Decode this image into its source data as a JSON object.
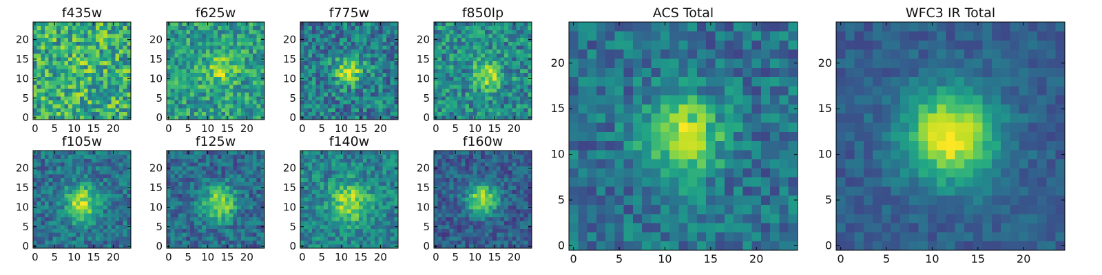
{
  "chart_data": [
    {
      "type": "heatmap",
      "title": "f435w",
      "pixels": "25x25",
      "xticks": [
        0,
        5,
        10,
        15,
        20
      ],
      "yticks": [
        0,
        5,
        10,
        15,
        20
      ],
      "xlim": [
        0,
        24
      ],
      "ylim": [
        0,
        24
      ],
      "colormap": "viridis",
      "peak": [
        12,
        12
      ],
      "peak_strength": 0.05,
      "peak_width": 3.5,
      "noise": 0.55,
      "base": 0.62
    },
    {
      "type": "heatmap",
      "title": "f625w",
      "pixels": "25x25",
      "xticks": [
        0,
        5,
        10,
        15,
        20
      ],
      "yticks": [
        0,
        5,
        10,
        15,
        20
      ],
      "xlim": [
        0,
        24
      ],
      "ylim": [
        0,
        24
      ],
      "colormap": "viridis",
      "peak": [
        13,
        12
      ],
      "peak_strength": 0.25,
      "peak_width": 3.0,
      "noise": 0.45,
      "base": 0.55
    },
    {
      "type": "heatmap",
      "title": "f775w",
      "pixels": "25x25",
      "xticks": [
        0,
        5,
        10,
        15,
        20
      ],
      "yticks": [
        0,
        5,
        10,
        15,
        20
      ],
      "xlim": [
        0,
        24
      ],
      "ylim": [
        0,
        24
      ],
      "colormap": "viridis",
      "peak": [
        12,
        12
      ],
      "peak_strength": 0.5,
      "peak_width": 2.5,
      "noise": 0.45,
      "base": 0.42
    },
    {
      "type": "heatmap",
      "title": "f850lp",
      "pixels": "25x25",
      "xticks": [
        0,
        5,
        10,
        15,
        20
      ],
      "yticks": [
        0,
        5,
        10,
        15,
        20
      ],
      "xlim": [
        0,
        24
      ],
      "ylim": [
        0,
        24
      ],
      "colormap": "viridis",
      "peak": [
        13,
        11
      ],
      "peak_strength": 0.4,
      "peak_width": 2.5,
      "noise": 0.45,
      "base": 0.48
    },
    {
      "type": "heatmap",
      "title": "f105w",
      "pixels": "25x25",
      "xticks": [
        0,
        5,
        10,
        15,
        20
      ],
      "yticks": [
        0,
        5,
        10,
        15,
        20
      ],
      "xlim": [
        0,
        24
      ],
      "ylim": [
        0,
        24
      ],
      "colormap": "viridis",
      "peak": [
        12,
        11
      ],
      "peak_strength": 0.55,
      "peak_width": 3.0,
      "noise": 0.35,
      "base": 0.38
    },
    {
      "type": "heatmap",
      "title": "f125w",
      "pixels": "25x25",
      "xticks": [
        0,
        5,
        10,
        15,
        20
      ],
      "yticks": [
        0,
        5,
        10,
        15,
        20
      ],
      "xlim": [
        0,
        24
      ],
      "ylim": [
        0,
        24
      ],
      "colormap": "viridis",
      "peak": [
        13,
        11
      ],
      "peak_strength": 0.55,
      "peak_width": 3.0,
      "noise": 0.35,
      "base": 0.35
    },
    {
      "type": "heatmap",
      "title": "f140w",
      "pixels": "25x25",
      "xticks": [
        0,
        5,
        10,
        15,
        20
      ],
      "yticks": [
        0,
        5,
        10,
        15,
        20
      ],
      "xlim": [
        0,
        24
      ],
      "ylim": [
        0,
        24
      ],
      "colormap": "viridis",
      "peak": [
        12,
        11
      ],
      "peak_strength": 0.45,
      "peak_width": 3.5,
      "noise": 0.35,
      "base": 0.45
    },
    {
      "type": "heatmap",
      "title": "f160w",
      "pixels": "25x25",
      "xticks": [
        0,
        5,
        10,
        15,
        20
      ],
      "yticks": [
        0,
        5,
        10,
        15,
        20
      ],
      "xlim": [
        0,
        24
      ],
      "ylim": [
        0,
        24
      ],
      "colormap": "viridis",
      "peak": [
        12,
        12
      ],
      "peak_strength": 0.6,
      "peak_width": 2.8,
      "noise": 0.3,
      "base": 0.3
    },
    {
      "type": "heatmap",
      "title": "ACS Total",
      "pixels": "25x25",
      "xticks": [
        0,
        5,
        10,
        15,
        20
      ],
      "yticks": [
        0,
        5,
        10,
        15,
        20
      ],
      "xlim": [
        0,
        24
      ],
      "ylim": [
        0,
        24
      ],
      "colormap": "viridis",
      "peak": [
        12,
        12
      ],
      "peak_strength": 0.55,
      "peak_width": 3.0,
      "noise": 0.35,
      "base": 0.38
    },
    {
      "type": "heatmap",
      "title": "WFC3 IR Total",
      "pixels": "25x25",
      "xticks": [
        0,
        5,
        10,
        15,
        20
      ],
      "yticks": [
        0,
        5,
        10,
        15,
        20
      ],
      "xlim": [
        0,
        24
      ],
      "ylim": [
        0,
        24
      ],
      "colormap": "viridis",
      "peak": [
        12,
        12
      ],
      "peak_strength": 0.7,
      "peak_width": 3.5,
      "noise": 0.18,
      "base": 0.3
    }
  ]
}
